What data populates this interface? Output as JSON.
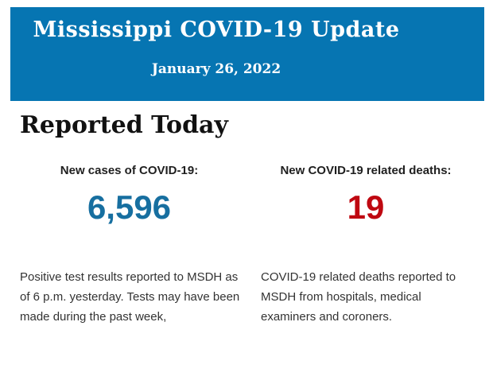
{
  "header": {
    "title": "Mississippi COVID-19 Update",
    "date": "January 26, 2022"
  },
  "section": {
    "heading": "Reported Today"
  },
  "stats": {
    "cases": {
      "label": "New cases of COVID-19:",
      "value": "6,596",
      "description": "Positive test results reported to MSDH as of 6 p.m. yesterday. Tests may have been made during the past week,"
    },
    "deaths": {
      "label": "New COVID-19 related deaths:",
      "value": "19",
      "description": "COVID-19 related deaths reported to MSDH from hospitals, medical examiners and coroners."
    }
  },
  "colors": {
    "banner_blue": "#0675b2",
    "banner_text": "#ffffff",
    "cases_value_blue": "#176fa0",
    "deaths_value_red": "#bf0811",
    "heading_text": "#111111",
    "body_text": "#333333",
    "page_background": "#ffffff"
  }
}
